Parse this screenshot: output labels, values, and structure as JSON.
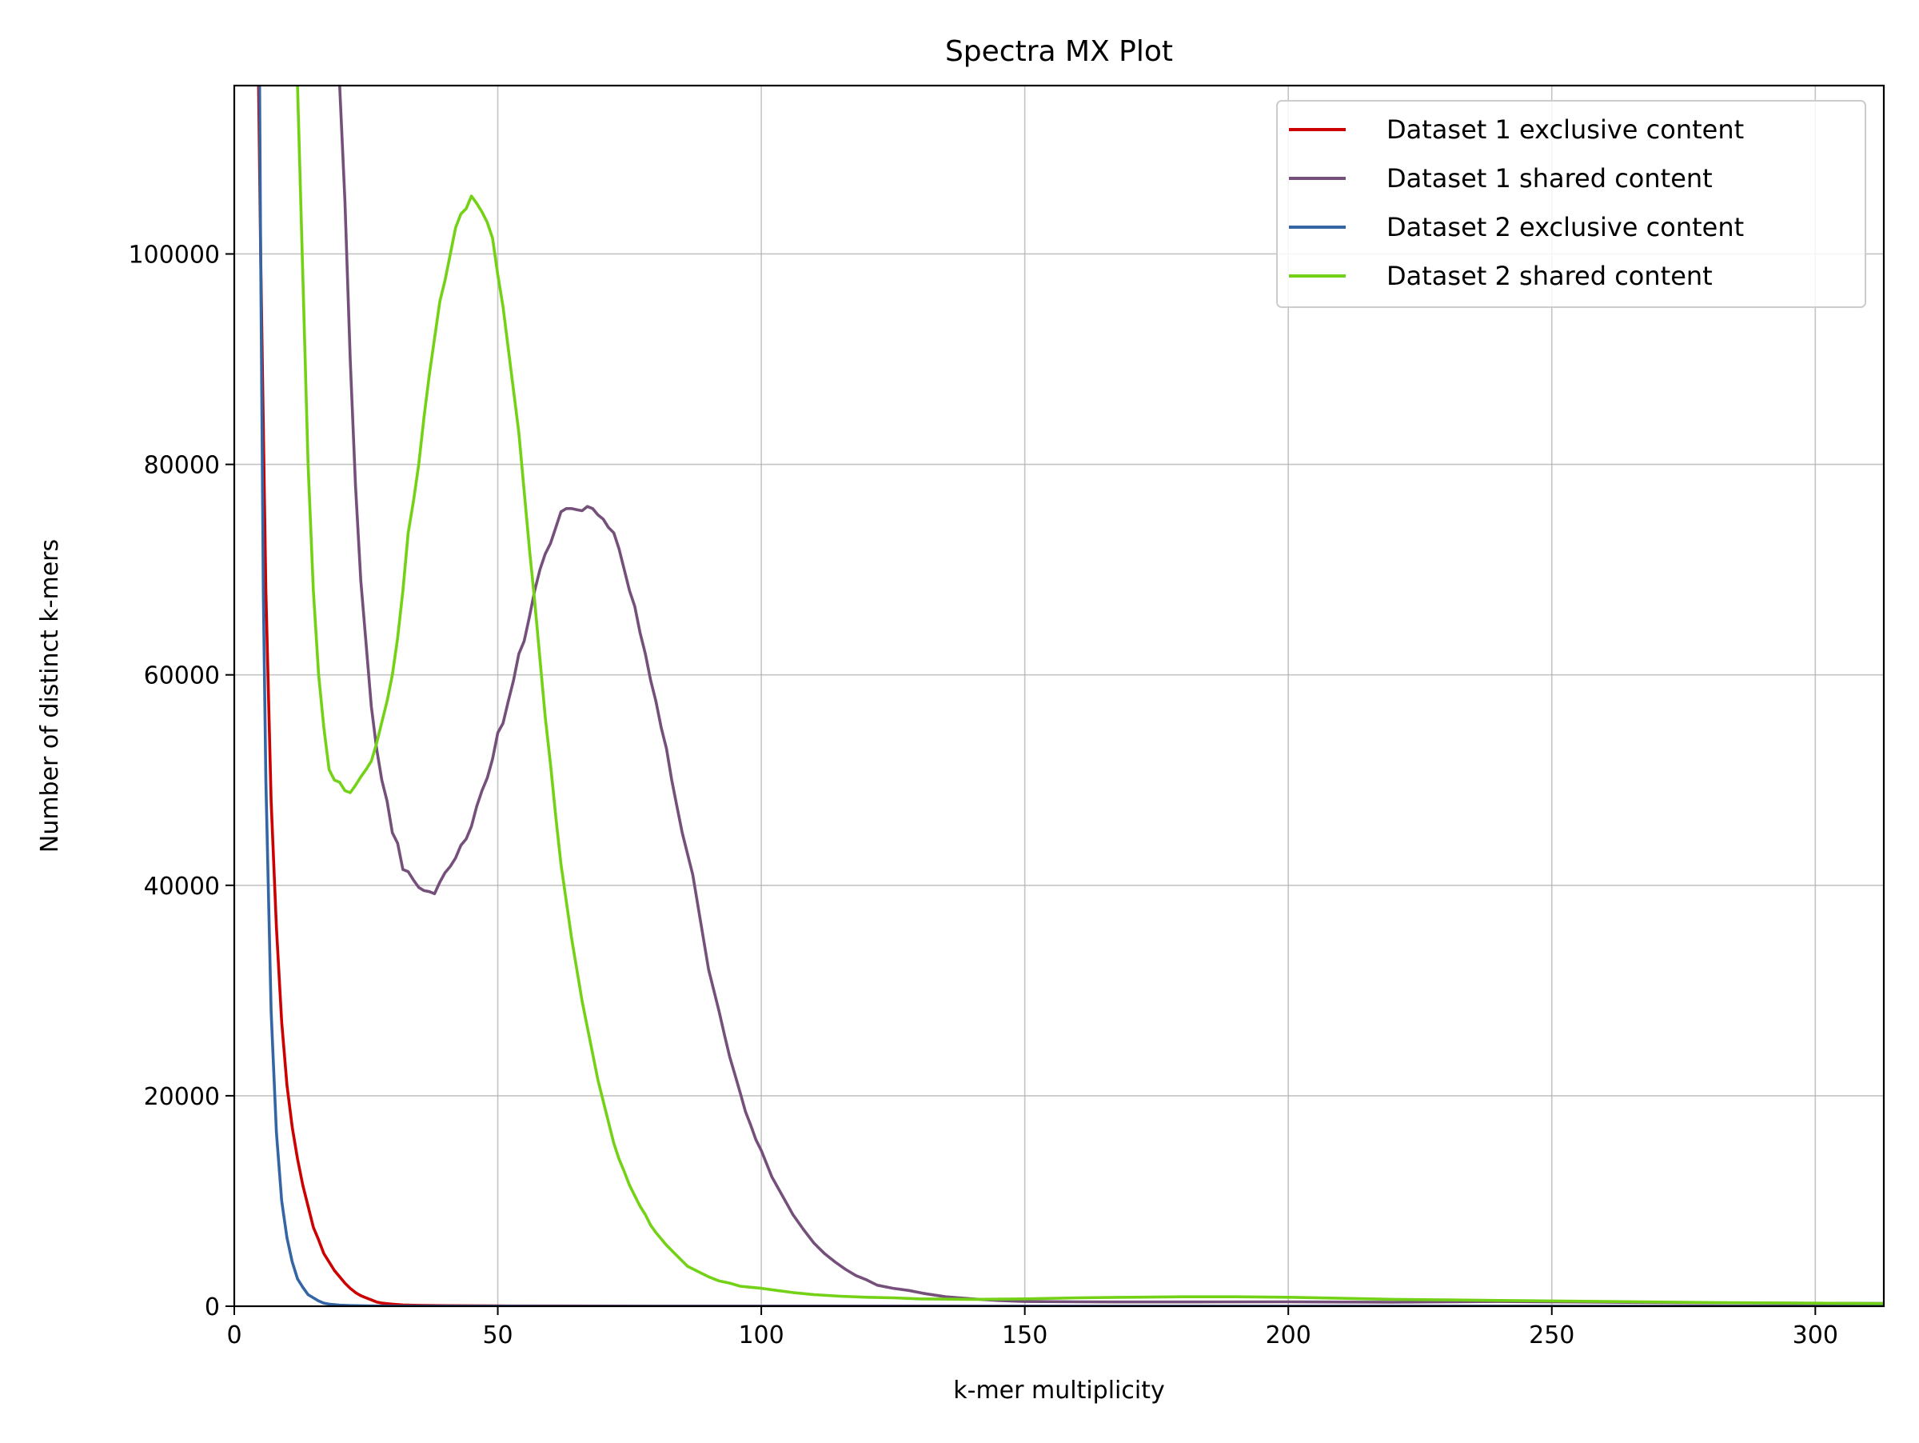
{
  "chart_data": {
    "type": "line",
    "title": "Spectra MX Plot",
    "xlabel": "k-mer multiplicity",
    "ylabel": "Number of distinct k-mers",
    "xlim": [
      0,
      313
    ],
    "ylim": [
      0,
      116000
    ],
    "xticks": [
      0,
      50,
      100,
      150,
      200,
      250,
      300
    ],
    "yticks": [
      0,
      20000,
      40000,
      60000,
      80000,
      100000
    ],
    "grid": true,
    "legend_position": "top-right",
    "series": [
      {
        "name": "Dataset 1 exclusive content",
        "color": "#cc0000",
        "x": [
          4,
          5,
          6,
          7,
          8,
          9,
          10,
          11,
          12,
          13,
          14,
          15,
          16,
          17,
          18,
          19,
          20,
          21,
          22,
          23,
          24,
          25,
          26,
          27,
          28,
          30,
          32,
          35,
          40,
          50,
          60,
          80,
          100,
          150,
          200,
          250,
          313
        ],
        "y": [
          140000,
          100000,
          68000,
          48000,
          36000,
          27000,
          21000,
          17000,
          14000,
          11500,
          9500,
          7500,
          6300,
          5000,
          4200,
          3400,
          2800,
          2200,
          1700,
          1300,
          1000,
          800,
          600,
          400,
          300,
          200,
          120,
          80,
          50,
          30,
          20,
          10,
          5,
          0,
          0,
          0,
          0
        ]
      },
      {
        "name": "Dataset 1 shared content",
        "color": "#75507b",
        "x": [
          20,
          21,
          22,
          23,
          24,
          25,
          26,
          27,
          28,
          29,
          30,
          31,
          32,
          33,
          34,
          35,
          36,
          37,
          38,
          39,
          40,
          41,
          42,
          43,
          44,
          45,
          46,
          47,
          48,
          49,
          50,
          51,
          52,
          53,
          54,
          55,
          56,
          57,
          58,
          59,
          60,
          61,
          62,
          63,
          64,
          65,
          66,
          67,
          68,
          69,
          70,
          71,
          72,
          73,
          74,
          75,
          76,
          77,
          78,
          79,
          80,
          81,
          82,
          83,
          84,
          85,
          86,
          87,
          88,
          89,
          90,
          91,
          92,
          93,
          94,
          95,
          96,
          97,
          98,
          99,
          100,
          102,
          104,
          106,
          108,
          110,
          112,
          114,
          116,
          118,
          120,
          122,
          125,
          128,
          131,
          135,
          140,
          145,
          150,
          160,
          170,
          180,
          200,
          220,
          240,
          260,
          280,
          313
        ],
        "y": [
          116000,
          105000,
          90000,
          78000,
          69000,
          63000,
          57000,
          53000,
          50000,
          48000,
          45000,
          44000,
          41500,
          41300,
          40500,
          39800,
          39500,
          39400,
          39200,
          40300,
          41200,
          41800,
          42600,
          43800,
          44400,
          45600,
          47500,
          49000,
          50200,
          52000,
          54500,
          55400,
          57500,
          59500,
          62000,
          63200,
          65500,
          68000,
          70000,
          71500,
          72500,
          74000,
          75500,
          75800,
          75800,
          75700,
          75600,
          76000,
          75800,
          75200,
          74800,
          74000,
          73500,
          72000,
          70000,
          68000,
          66500,
          64000,
          62000,
          59500,
          57500,
          55000,
          53000,
          50000,
          47500,
          45000,
          43000,
          41000,
          38000,
          35000,
          32000,
          30000,
          28000,
          25800,
          23700,
          22000,
          20300,
          18500,
          17200,
          15800,
          14800,
          12300,
          10500,
          8700,
          7300,
          6000,
          5000,
          4200,
          3500,
          2900,
          2500,
          2000,
          1700,
          1500,
          1200,
          900,
          700,
          550,
          450,
          420,
          400,
          400,
          420,
          380,
          450,
          380,
          320,
          260
        ]
      },
      {
        "name": "Dataset 2 exclusive content",
        "color": "#3465a4",
        "x": [
          4.5,
          5,
          5.5,
          6,
          7,
          8,
          9,
          10,
          11,
          12,
          13,
          14,
          15,
          16,
          17,
          18,
          20,
          22,
          25,
          30,
          40,
          60,
          100,
          150,
          200,
          250,
          313
        ],
        "y": [
          140000,
          100000,
          68000,
          50000,
          28000,
          16500,
          10000,
          6500,
          4200,
          2600,
          1800,
          1100,
          800,
          500,
          300,
          200,
          100,
          60,
          30,
          10,
          5,
          2,
          0,
          0,
          0,
          0,
          0
        ]
      },
      {
        "name": "Dataset 2 shared content",
        "color": "#73d216",
        "x": [
          12,
          13,
          14,
          15,
          16,
          17,
          18,
          19,
          20,
          21,
          22,
          23,
          24,
          25,
          26,
          27,
          28,
          29,
          30,
          31,
          32,
          33,
          34,
          35,
          36,
          37,
          38,
          39,
          40,
          41,
          42,
          43,
          44,
          45,
          46,
          47,
          48,
          49,
          50,
          51,
          52,
          53,
          54,
          55,
          56,
          57,
          58,
          59,
          60,
          61,
          62,
          63,
          64,
          65,
          66,
          67,
          68,
          69,
          70,
          71,
          72,
          73,
          74,
          75,
          76,
          77,
          78,
          79,
          80,
          82,
          84,
          86,
          88,
          90,
          92,
          94,
          96,
          98,
          100,
          103,
          106,
          110,
          115,
          120,
          125,
          130,
          140,
          150,
          160,
          170,
          180,
          190,
          200,
          210,
          220,
          230,
          240,
          250,
          260,
          280,
          313
        ],
        "y": [
          116000,
          98000,
          80000,
          68000,
          60000,
          55000,
          51000,
          50000,
          49800,
          49000,
          48800,
          49500,
          50300,
          51000,
          51800,
          53500,
          55500,
          57500,
          60000,
          63500,
          68000,
          73500,
          76500,
          80000,
          84500,
          88500,
          92000,
          95500,
          97500,
          100000,
          102500,
          103800,
          104300,
          105500,
          104800,
          104000,
          103000,
          101500,
          98000,
          95000,
          91000,
          87000,
          83000,
          77500,
          72000,
          67000,
          61500,
          56000,
          51500,
          46500,
          42000,
          38500,
          35000,
          32000,
          29000,
          26500,
          24000,
          21500,
          19500,
          17500,
          15500,
          14000,
          12800,
          11500,
          10500,
          9500,
          8700,
          7700,
          7000,
          5800,
          4800,
          3800,
          3300,
          2800,
          2400,
          2200,
          1900,
          1800,
          1700,
          1500,
          1300,
          1100,
          950,
          850,
          800,
          700,
          650,
          700,
          800,
          850,
          900,
          900,
          850,
          750,
          650,
          600,
          550,
          500,
          450,
          350,
          250
        ]
      }
    ]
  }
}
